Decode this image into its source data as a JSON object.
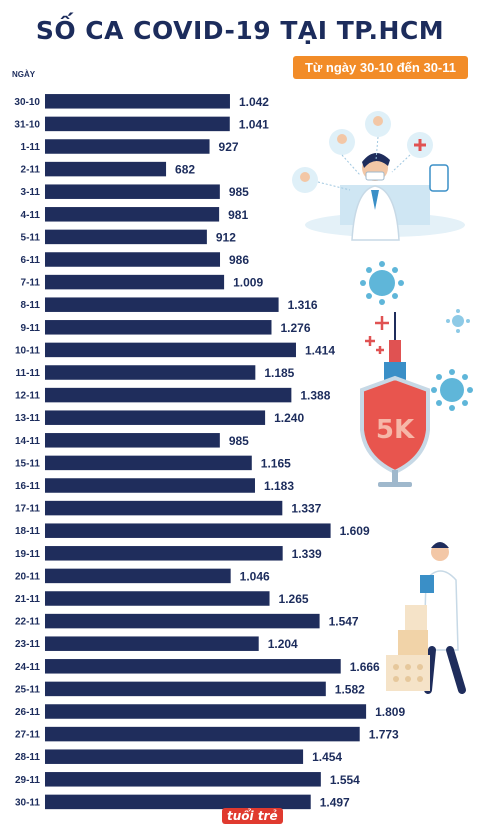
{
  "title": "SỐ CA COVID-19 TẠI TP.HCM",
  "subtitle": "Từ ngày 30-10 đến 30-11",
  "logo_text": "tuổi trẻ",
  "chart_data": {
    "type": "bar",
    "orientation": "horizontal",
    "title": "SỐ CA COVID-19 TẠI TP.HCM",
    "subtitle": "Từ ngày 30-10 đến 30-11",
    "category_header": "NGÀY",
    "bar_color": "#1f2d5c",
    "categories": [
      "30-10",
      "31-10",
      "1-11",
      "2-11",
      "3-11",
      "4-11",
      "5-11",
      "6-11",
      "7-11",
      "8-11",
      "9-11",
      "10-11",
      "11-11",
      "12-11",
      "13-11",
      "14-11",
      "15-11",
      "16-11",
      "17-11",
      "18-11",
      "19-11",
      "20-11",
      "21-11",
      "22-11",
      "23-11",
      "24-11",
      "25-11",
      "26-11",
      "27-11",
      "28-11",
      "29-11",
      "30-11"
    ],
    "values": [
      1042,
      1041,
      927,
      682,
      985,
      981,
      912,
      986,
      1009,
      1316,
      1276,
      1414,
      1185,
      1388,
      1240,
      985,
      1165,
      1183,
      1337,
      1609,
      1339,
      1046,
      1265,
      1547,
      1204,
      1666,
      1582,
      1809,
      1773,
      1454,
      1554,
      1497
    ],
    "value_labels": [
      "1.042",
      "1.041",
      "927",
      "682",
      "985",
      "981",
      "912",
      "986",
      "1.009",
      "1.316",
      "1.276",
      "1.414",
      "1.185",
      "1.388",
      "1.240",
      "985",
      "1.165",
      "1.183",
      "1.337",
      "1.609",
      "1.339",
      "1.046",
      "1.265",
      "1.547",
      "1.204",
      "1.666",
      "1.582",
      "1.809",
      "1.773",
      "1.454",
      "1.554",
      "1.497"
    ]
  }
}
